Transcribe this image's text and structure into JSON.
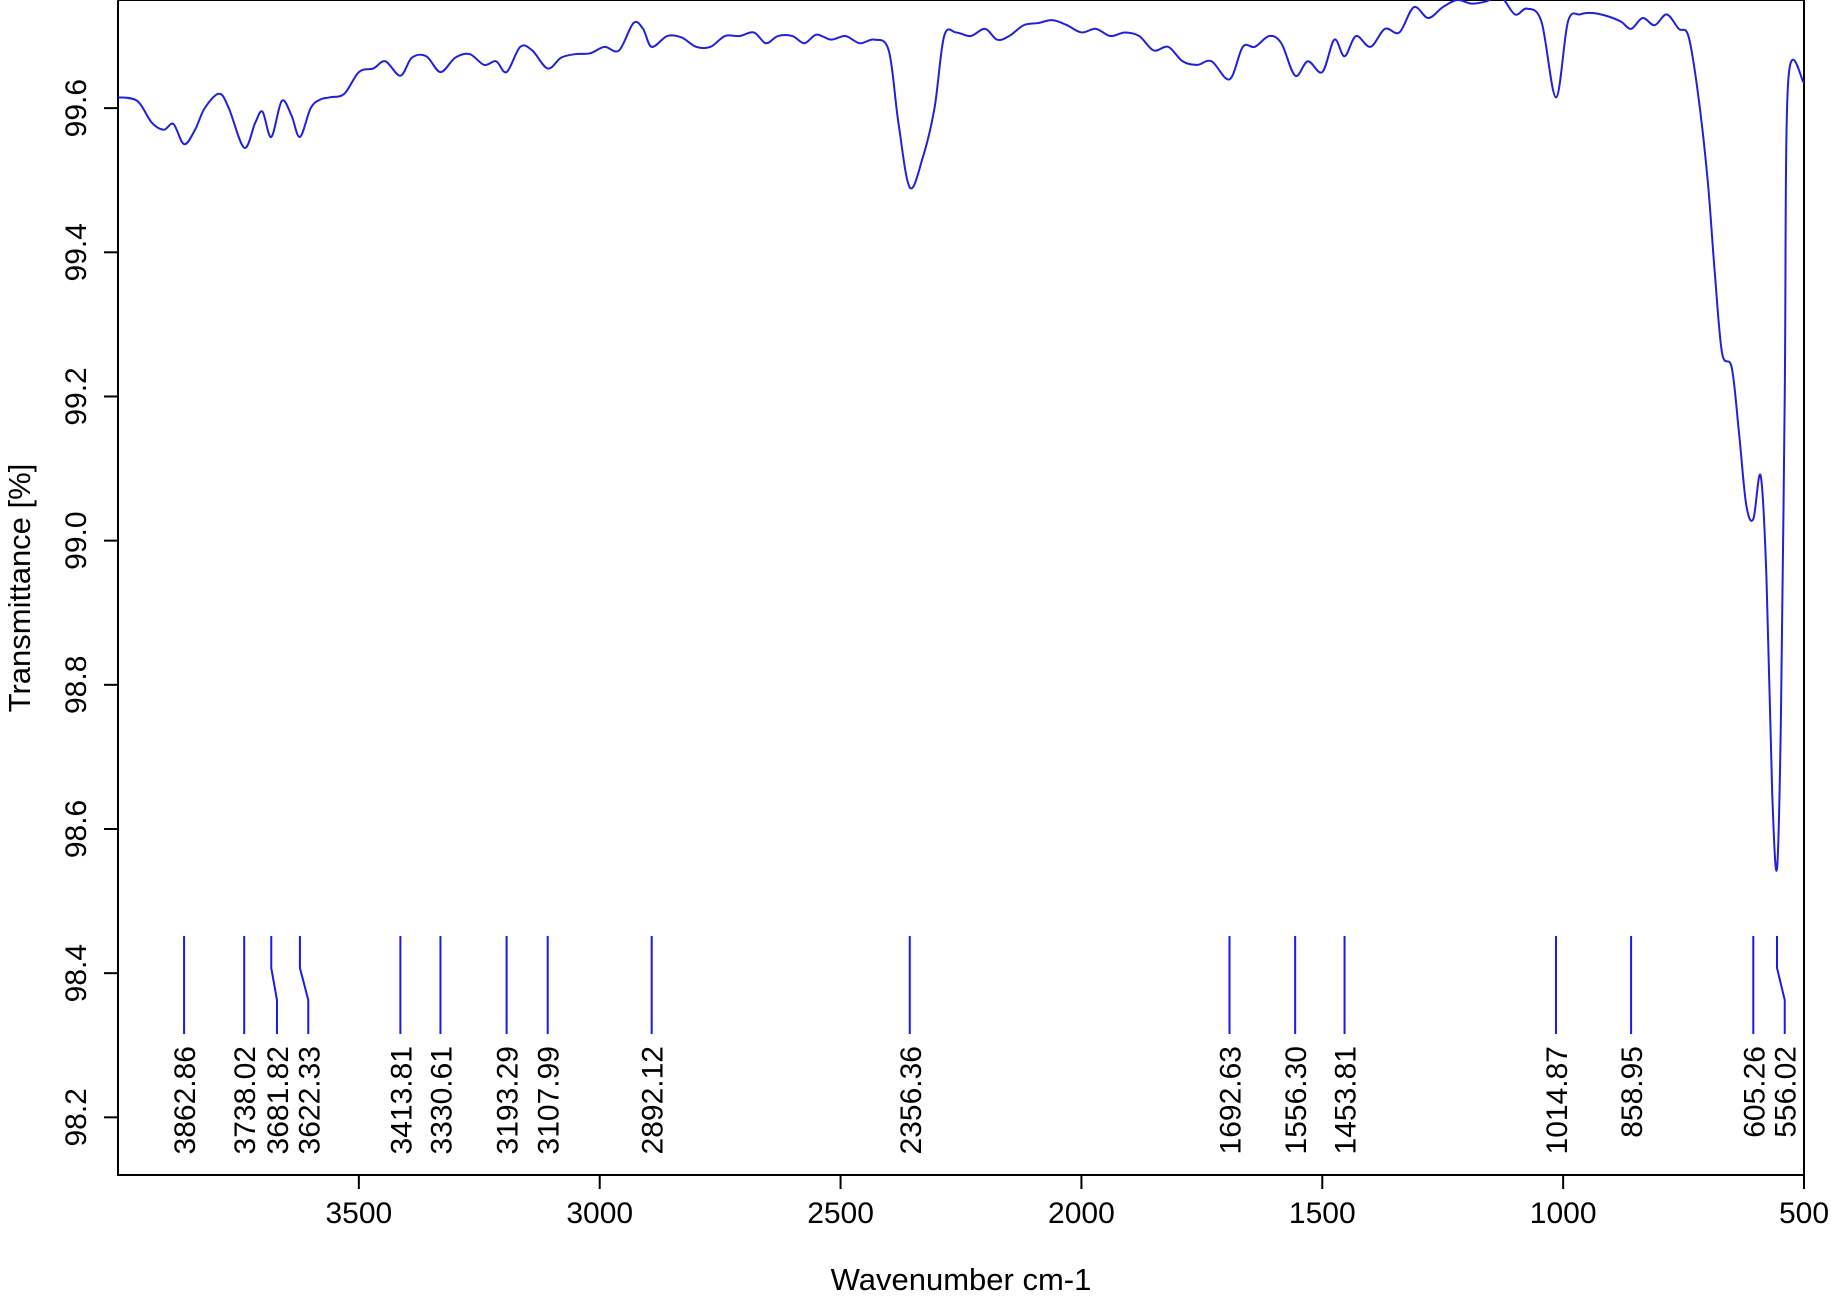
{
  "chart_data": {
    "type": "line",
    "title": "",
    "xlabel": "Wavenumber cm-1",
    "ylabel": "Transmittance [%]",
    "xlim": [
      4000,
      500
    ],
    "ylim": [
      98.12,
      99.75
    ],
    "x_reversed": true,
    "grid": false,
    "line_color": "#2020dd",
    "peak_marker_color": "#1a1aee",
    "x_ticks": [
      {
        "value": 3500,
        "label": "3500"
      },
      {
        "value": 3000,
        "label": "3000"
      },
      {
        "value": 2500,
        "label": "2500"
      },
      {
        "value": 2000,
        "label": "2000"
      },
      {
        "value": 1500,
        "label": "1500"
      },
      {
        "value": 1000,
        "label": "1000"
      },
      {
        "value": 500,
        "label": "500"
      }
    ],
    "y_ticks": [
      {
        "value": 98.2,
        "label": "98.2"
      },
      {
        "value": 98.4,
        "label": "98.4"
      },
      {
        "value": 98.6,
        "label": "98.6"
      },
      {
        "value": 98.8,
        "label": "98.8"
      },
      {
        "value": 99.0,
        "label": "99.0"
      },
      {
        "value": 99.2,
        "label": "99.2"
      },
      {
        "value": 99.4,
        "label": "99.4"
      },
      {
        "value": 99.6,
        "label": "99.6"
      }
    ],
    "series": [
      {
        "values": [
          [
            4000,
            99.615
          ],
          [
            3960,
            99.61
          ],
          [
            3930,
            99.58
          ],
          [
            3905,
            99.57
          ],
          [
            3885,
            99.578
          ],
          [
            3862.86,
            99.55
          ],
          [
            3840,
            99.57
          ],
          [
            3820,
            99.6
          ],
          [
            3790,
            99.62
          ],
          [
            3770,
            99.6
          ],
          [
            3738.02,
            99.545
          ],
          [
            3715,
            99.58
          ],
          [
            3700,
            99.595
          ],
          [
            3681.82,
            99.56
          ],
          [
            3660,
            99.61
          ],
          [
            3640,
            99.59
          ],
          [
            3622.33,
            99.56
          ],
          [
            3600,
            99.6
          ],
          [
            3580,
            99.612
          ],
          [
            3560,
            99.615
          ],
          [
            3530,
            99.62
          ],
          [
            3500,
            99.65
          ],
          [
            3470,
            99.655
          ],
          [
            3445,
            99.665
          ],
          [
            3413.81,
            99.645
          ],
          [
            3390,
            99.67
          ],
          [
            3360,
            99.672
          ],
          [
            3330.61,
            99.65
          ],
          [
            3300,
            99.67
          ],
          [
            3270,
            99.675
          ],
          [
            3240,
            99.66
          ],
          [
            3215,
            99.665
          ],
          [
            3193.29,
            99.65
          ],
          [
            3165,
            99.685
          ],
          [
            3140,
            99.68
          ],
          [
            3107.99,
            99.655
          ],
          [
            3080,
            99.67
          ],
          [
            3050,
            99.675
          ],
          [
            3020,
            99.676
          ],
          [
            2990,
            99.685
          ],
          [
            2960,
            99.68
          ],
          [
            2930,
            99.718
          ],
          [
            2910,
            99.71
          ],
          [
            2892.12,
            99.685
          ],
          [
            2860,
            99.7
          ],
          [
            2830,
            99.698
          ],
          [
            2800,
            99.685
          ],
          [
            2770,
            99.685
          ],
          [
            2740,
            99.7
          ],
          [
            2710,
            99.7
          ],
          [
            2680,
            99.705
          ],
          [
            2655,
            99.69
          ],
          [
            2630,
            99.7
          ],
          [
            2600,
            99.7
          ],
          [
            2575,
            99.69
          ],
          [
            2550,
            99.702
          ],
          [
            2520,
            99.695
          ],
          [
            2490,
            99.7
          ],
          [
            2460,
            99.69
          ],
          [
            2430,
            99.695
          ],
          [
            2400,
            99.68
          ],
          [
            2380,
            99.58
          ],
          [
            2356.36,
            99.49
          ],
          [
            2330,
            99.53
          ],
          [
            2305,
            99.6
          ],
          [
            2285,
            99.7
          ],
          [
            2260,
            99.705
          ],
          [
            2230,
            99.7
          ],
          [
            2200,
            99.71
          ],
          [
            2175,
            99.695
          ],
          [
            2150,
            99.7
          ],
          [
            2120,
            99.715
          ],
          [
            2090,
            99.718
          ],
          [
            2060,
            99.722
          ],
          [
            2030,
            99.715
          ],
          [
            2000,
            99.705
          ],
          [
            1970,
            99.71
          ],
          [
            1940,
            99.7
          ],
          [
            1910,
            99.705
          ],
          [
            1880,
            99.7
          ],
          [
            1850,
            99.68
          ],
          [
            1820,
            99.685
          ],
          [
            1790,
            99.665
          ],
          [
            1760,
            99.66
          ],
          [
            1730,
            99.665
          ],
          [
            1692.63,
            99.64
          ],
          [
            1665,
            99.685
          ],
          [
            1640,
            99.685
          ],
          [
            1610,
            99.7
          ],
          [
            1585,
            99.69
          ],
          [
            1556.3,
            99.645
          ],
          [
            1530,
            99.665
          ],
          [
            1500,
            99.65
          ],
          [
            1475,
            99.695
          ],
          [
            1453.81,
            99.672
          ],
          [
            1430,
            99.7
          ],
          [
            1400,
            99.685
          ],
          [
            1370,
            99.71
          ],
          [
            1340,
            99.705
          ],
          [
            1310,
            99.74
          ],
          [
            1280,
            99.725
          ],
          [
            1250,
            99.74
          ],
          [
            1220,
            99.75
          ],
          [
            1190,
            99.745
          ],
          [
            1160,
            99.748
          ],
          [
            1130,
            99.755
          ],
          [
            1100,
            99.73
          ],
          [
            1075,
            99.738
          ],
          [
            1045,
            99.72
          ],
          [
            1014.87,
            99.615
          ],
          [
            990,
            99.72
          ],
          [
            965,
            99.73
          ],
          [
            940,
            99.732
          ],
          [
            910,
            99.728
          ],
          [
            880,
            99.72
          ],
          [
            858.95,
            99.71
          ],
          [
            835,
            99.725
          ],
          [
            810,
            99.715
          ],
          [
            785,
            99.73
          ],
          [
            760,
            99.71
          ],
          [
            740,
            99.7
          ],
          [
            720,
            99.62
          ],
          [
            700,
            99.5
          ],
          [
            685,
            99.37
          ],
          [
            670,
            99.26
          ],
          [
            650,
            99.24
          ],
          [
            635,
            99.15
          ],
          [
            620,
            99.05
          ],
          [
            605.26,
            99.03
          ],
          [
            590,
            99.09
          ],
          [
            578,
            98.95
          ],
          [
            566,
            98.65
          ],
          [
            556.02,
            98.545
          ],
          [
            548,
            98.75
          ],
          [
            540,
            99.2
          ],
          [
            533,
            99.635
          ],
          [
            500,
            99.635
          ]
        ]
      }
    ],
    "peak_markers": [
      {
        "x": 3862.86,
        "label": "3862.86",
        "label_x": 3862.86
      },
      {
        "x": 3738.02,
        "label": "3738.02",
        "label_x": 3738.02
      },
      {
        "x": 3681.82,
        "label": "3681.82",
        "label_x": 3670
      },
      {
        "x": 3622.33,
        "label": "3622.33",
        "label_x": 3605
      },
      {
        "x": 3413.81,
        "label": "3413.81",
        "label_x": 3413.81
      },
      {
        "x": 3330.61,
        "label": "3330.61",
        "label_x": 3330.61
      },
      {
        "x": 3193.29,
        "label": "3193.29",
        "label_x": 3193.29
      },
      {
        "x": 3107.99,
        "label": "3107.99",
        "label_x": 3107.99
      },
      {
        "x": 2892.12,
        "label": "2892.12",
        "label_x": 2892.12
      },
      {
        "x": 2356.36,
        "label": "2356.36",
        "label_x": 2356.36
      },
      {
        "x": 1692.63,
        "label": "1692.63",
        "label_x": 1692.63
      },
      {
        "x": 1556.3,
        "label": "1556.30",
        "label_x": 1556.3
      },
      {
        "x": 1453.81,
        "label": "1453.81",
        "label_x": 1453.81
      },
      {
        "x": 1014.87,
        "label": "1014.87",
        "label_x": 1014.87
      },
      {
        "x": 858.95,
        "label": "858.95",
        "label_x": 858.95
      },
      {
        "x": 605.26,
        "label": "605.26",
        "label_x": 605.26
      },
      {
        "x": 556.02,
        "label": "556.02",
        "label_x": 540
      }
    ],
    "peak_marker_range": [
      98.4,
      98.31
    ]
  }
}
